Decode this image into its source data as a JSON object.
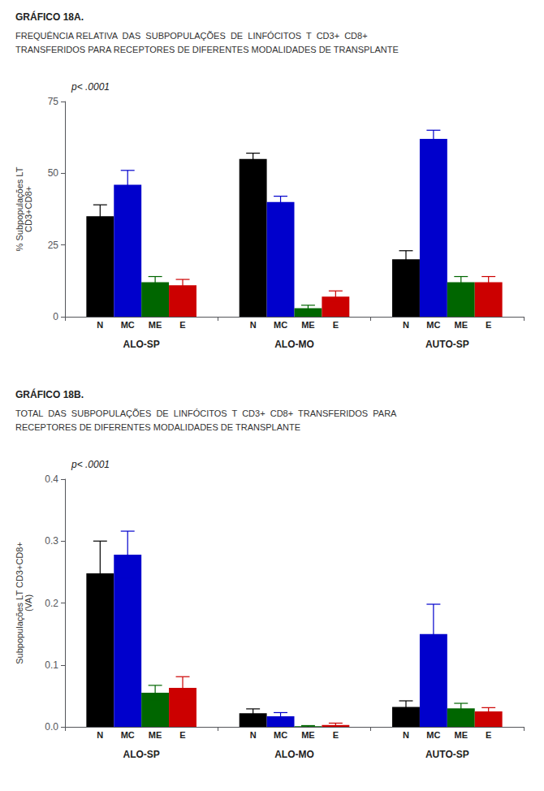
{
  "chart_data": [
    {
      "type": "bar",
      "title": "GRÁFICO 18A.",
      "subtitle": "FREQUÊNCIA RELATIVA  DAS  SUBPOPULAÇÕES  DE  LINFÓCITOS  T  CD3+  CD8+\nTRANSFERIDOS PARA RECEPTORES DE DIFERENTES MODALIDADES DE TRANSPLANTE",
      "annotation": "p< .0001",
      "ylabel": "% Subpopulações LT\nCD3+CD8+",
      "categories": [
        "ALO-SP",
        "ALO-MO",
        "AUTO-SP"
      ],
      "series": [
        {
          "name": "N",
          "color": "#000000",
          "values": [
            35,
            55,
            20
          ],
          "errors": [
            4,
            2,
            3
          ]
        },
        {
          "name": "MC",
          "color": "#0000cc",
          "values": [
            46,
            40,
            62
          ],
          "errors": [
            5,
            2,
            3
          ]
        },
        {
          "name": "ME",
          "color": "#006600",
          "values": [
            12,
            3,
            12
          ],
          "errors": [
            2,
            1,
            2
          ]
        },
        {
          "name": "E",
          "color": "#cc0000",
          "values": [
            11,
            7,
            12
          ],
          "errors": [
            2,
            2,
            2
          ]
        }
      ],
      "ylim": [
        0,
        75
      ],
      "yticks": [
        0,
        25,
        50,
        75
      ],
      "grid": false
    },
    {
      "type": "bar",
      "title": "GRÁFICO 18B.",
      "subtitle": "TOTAL  DAS  SUBPOPULAÇÕES  DE  LINFÓCITOS  T  CD3+  CD8+  TRANSFERIDOS  PARA\nRECEPTORES DE DIFERENTES MODALIDADES DE TRANSPLANTE",
      "annotation": "p< .0001",
      "ylabel": "Subpopulações LT CD3+CD8+\n(VA)",
      "categories": [
        "ALO-SP",
        "ALO-MO",
        "AUTO-SP"
      ],
      "series": [
        {
          "name": "N",
          "color": "#000000",
          "values": [
            0.248,
            0.022,
            0.032
          ],
          "errors": [
            0.052,
            0.007,
            0.01
          ]
        },
        {
          "name": "MC",
          "color": "#0000cc",
          "values": [
            0.278,
            0.017,
            0.15
          ],
          "errors": [
            0.038,
            0.006,
            0.048
          ]
        },
        {
          "name": "ME",
          "color": "#006600",
          "values": [
            0.055,
            0.001,
            0.03
          ],
          "errors": [
            0.012,
            0.001,
            0.008
          ]
        },
        {
          "name": "E",
          "color": "#cc0000",
          "values": [
            0.063,
            0.003,
            0.025
          ],
          "errors": [
            0.018,
            0.003,
            0.006
          ]
        }
      ],
      "ylim": [
        0,
        0.4
      ],
      "yticks": [
        {
          "value": 0,
          "label": "0.0"
        },
        0.1,
        0.2,
        0.3,
        0.4
      ],
      "grid": false
    }
  ]
}
